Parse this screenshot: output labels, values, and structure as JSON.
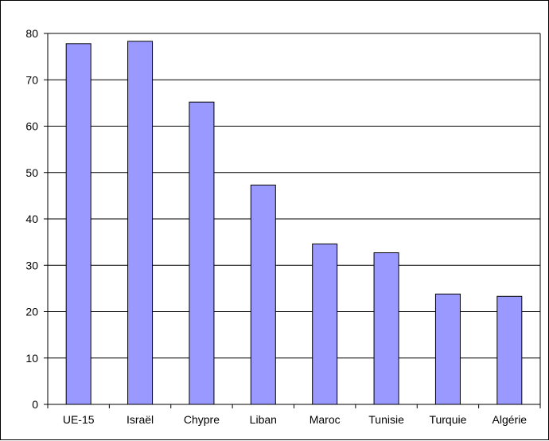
{
  "chart_data": {
    "type": "bar",
    "categories": [
      "UE-15",
      "Israël",
      "Chypre",
      "Liban",
      "Maroc",
      "Tunisie",
      "Turquie",
      "Algérie"
    ],
    "values": [
      77.8,
      78.3,
      65.2,
      47.3,
      34.6,
      32.7,
      23.8,
      23.3
    ],
    "ylim": [
      0,
      80
    ],
    "yticks": [
      "0",
      "10",
      "20",
      "30",
      "40",
      "50",
      "60",
      "70",
      "80"
    ],
    "grid": true,
    "legend": "none",
    "colors": {
      "bar_fill": "#9999FF",
      "bar_stroke": "#000000",
      "grid": "#000000"
    }
  }
}
